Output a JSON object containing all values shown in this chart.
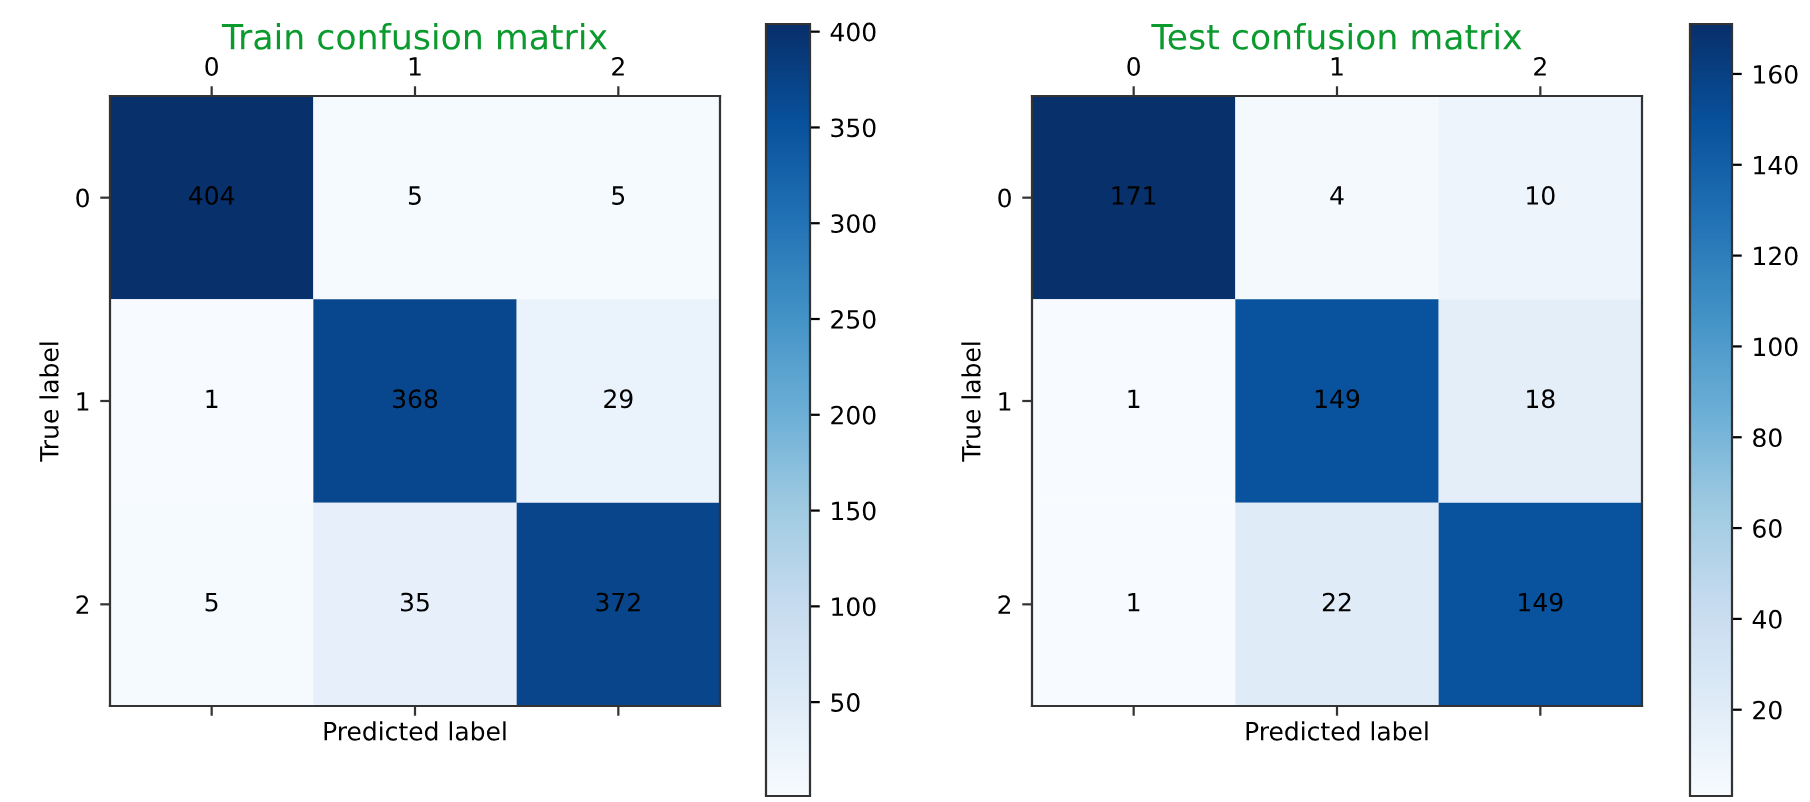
{
  "chart_data": [
    {
      "type": "heatmap",
      "title": "Train confusion matrix",
      "xlabel": "Predicted label",
      "ylabel": "True label",
      "categories": [
        "0",
        "1",
        "2"
      ],
      "y_categories": [
        "0",
        "1",
        "2"
      ],
      "cells": [
        [
          404,
          5,
          5
        ],
        [
          1,
          368,
          29
        ],
        [
          5,
          35,
          372
        ]
      ],
      "clim": [
        1,
        404
      ],
      "cticks": [
        50,
        100,
        150,
        200,
        250,
        300,
        350,
        400
      ],
      "data_labels": true
    },
    {
      "type": "heatmap",
      "title": "Test confusion matrix",
      "xlabel": "Predicted label",
      "ylabel": "True label",
      "categories": [
        "0",
        "1",
        "2"
      ],
      "y_categories": [
        "0",
        "1",
        "2"
      ],
      "cells": [
        [
          171,
          4,
          10
        ],
        [
          1,
          149,
          18
        ],
        [
          1,
          22,
          149
        ]
      ],
      "clim": [
        1,
        171
      ],
      "cticks": [
        20,
        40,
        60,
        80,
        100,
        120,
        140,
        160
      ],
      "data_labels": true
    }
  ]
}
